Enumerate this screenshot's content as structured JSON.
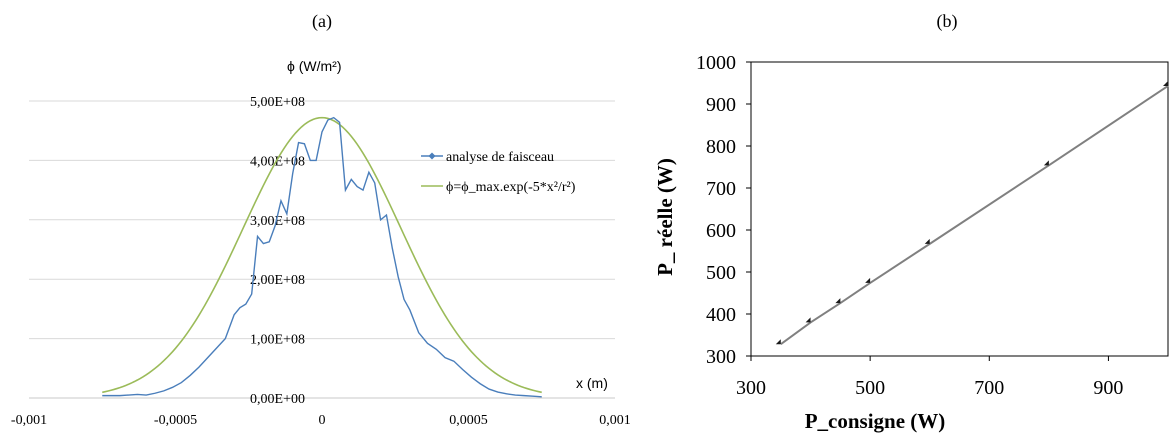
{
  "panels": {
    "a_label": "(a)",
    "b_label": "(b)"
  },
  "chart_data": [
    {
      "id": "a",
      "type": "line",
      "title": "",
      "ylabel": "ϕ (W/m²)",
      "xlabel": "x (m)",
      "xlim": [
        -0.001,
        0.001
      ],
      "ylim": [
        0,
        500000000
      ],
      "x_ticks": [
        -0.001,
        -0.0005,
        0,
        0.0005,
        0.001
      ],
      "x_tick_labels": [
        "-0,001",
        "-0,0005",
        "0",
        "0,0005",
        "0,001"
      ],
      "y_ticks": [
        0,
        100000000,
        200000000,
        300000000,
        400000000,
        500000000
      ],
      "y_tick_labels": [
        "0,00E+00",
        "1,00E+08",
        "2,00E+08",
        "3,00E+08",
        "4,00E+08",
        "5,00E+08"
      ],
      "grid": "horizontal",
      "legend": "right",
      "series": [
        {
          "name": "analyse de faisceau",
          "color": "#4a7ebb",
          "marker": "diamond",
          "x": [
            -0.00075,
            -0.00072,
            -0.00069,
            -0.00066,
            -0.00063,
            -0.0006,
            -0.00057,
            -0.00054,
            -0.00051,
            -0.00048,
            -0.00045,
            -0.00042,
            -0.00039,
            -0.00036,
            -0.00033,
            -0.0003,
            -0.00028,
            -0.00026,
            -0.00024,
            -0.00022,
            -0.0002,
            -0.00018,
            -0.00016,
            -0.00014,
            -0.00012,
            -0.0001,
            -8e-05,
            -6e-05,
            -4e-05,
            -2e-05,
            0,
            2e-05,
            4e-05,
            6e-05,
            8e-05,
            0.0001,
            0.00012,
            0.00014,
            0.00016,
            0.00018,
            0.0002,
            0.00022,
            0.00024,
            0.00026,
            0.00028,
            0.0003,
            0.00033,
            0.00036,
            0.00039,
            0.00042,
            0.00045,
            0.00048,
            0.00051,
            0.00054,
            0.00057,
            0.0006,
            0.00063,
            0.00066,
            0.00069,
            0.00072,
            0.00075
          ],
          "y": [
            4000000,
            4000000,
            4000000,
            5000000,
            6000000,
            5000000,
            8000000,
            12000000,
            18000000,
            26000000,
            38000000,
            52000000,
            68000000,
            84000000,
            100000000,
            140000000,
            152000000,
            158000000,
            175000000,
            272000000,
            260000000,
            263000000,
            290000000,
            332000000,
            310000000,
            378000000,
            430000000,
            428000000,
            400000000,
            400000000,
            448000000,
            468000000,
            472000000,
            464000000,
            350000000,
            368000000,
            356000000,
            350000000,
            380000000,
            362000000,
            300000000,
            308000000,
            252000000,
            204000000,
            166000000,
            148000000,
            110000000,
            92000000,
            82000000,
            68000000,
            62000000,
            48000000,
            35000000,
            24000000,
            15000000,
            10000000,
            7000000,
            5000000,
            4000000,
            3000000,
            2000000
          ]
        },
        {
          "name": "ϕ=ϕ_max.exp(-5*x²/r²)",
          "color": "#9bbb59",
          "marker": "none",
          "phi_max": 472000000,
          "r": 0.00085,
          "x_range": [
            -0.00075,
            0.00075
          ]
        }
      ]
    },
    {
      "id": "b",
      "type": "line",
      "title": "",
      "xlabel": "P_consigne (W)",
      "ylabel": "P_ réelle (W)",
      "xlim": [
        300,
        1000
      ],
      "ylim": [
        300,
        1000
      ],
      "x_ticks": [
        300,
        500,
        700,
        900
      ],
      "y_ticks": [
        300,
        400,
        500,
        600,
        700,
        800,
        900,
        1000
      ],
      "grid": "none",
      "legend": "none",
      "series": [
        {
          "color": "#808080",
          "marker_color": "#1a1a1a",
          "marker": "diamond",
          "x": [
            350,
            400,
            450,
            500,
            600,
            800,
            1000
          ],
          "y": [
            328,
            380,
            426,
            474,
            567,
            754,
            943
          ]
        }
      ]
    }
  ]
}
